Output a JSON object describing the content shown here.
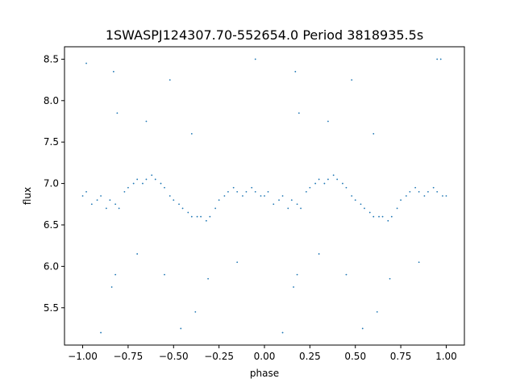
{
  "chart_data": {
    "type": "scatter",
    "title": "1SWASPJ124307.70-552654.0 Period 3818935.5s",
    "xlabel": "phase",
    "ylabel": "flux",
    "xlim": [
      -1.1,
      1.1
    ],
    "ylim": [
      5.05,
      8.65
    ],
    "xticks": [
      -1.0,
      -0.75,
      -0.5,
      -0.25,
      0.0,
      0.25,
      0.5,
      0.75,
      1.0
    ],
    "xtick_labels": [
      "−1.00",
      "−0.75",
      "−0.50",
      "−0.25",
      "0.00",
      "0.25",
      "0.50",
      "0.75",
      "1.00"
    ],
    "yticks": [
      5.5,
      6.0,
      6.5,
      7.0,
      7.5,
      8.0,
      8.5
    ],
    "ytick_labels": [
      "5.5",
      "6.0",
      "6.5",
      "7.0",
      "7.5",
      "8.0",
      "8.5"
    ],
    "grid": false,
    "marker_color": "#1f77b4",
    "series": [
      {
        "points": [
          [
            -1.0,
            6.85
          ],
          [
            -0.98,
            6.9
          ],
          [
            -0.95,
            6.75
          ],
          [
            -0.92,
            6.8
          ],
          [
            -0.9,
            6.85
          ],
          [
            -0.87,
            6.7
          ],
          [
            -0.85,
            6.8
          ],
          [
            -0.82,
            6.75
          ],
          [
            -0.8,
            6.7
          ],
          [
            -0.77,
            6.9
          ],
          [
            -0.75,
            6.95
          ],
          [
            -0.72,
            7.0
          ],
          [
            -0.7,
            7.05
          ],
          [
            -0.67,
            7.0
          ],
          [
            -0.65,
            7.05
          ],
          [
            -0.62,
            7.1
          ],
          [
            -0.6,
            7.05
          ],
          [
            -0.57,
            7.0
          ],
          [
            -0.55,
            6.95
          ],
          [
            -0.52,
            6.85
          ],
          [
            -0.5,
            6.8
          ],
          [
            -0.47,
            6.75
          ],
          [
            -0.45,
            6.7
          ],
          [
            -0.42,
            6.65
          ],
          [
            -0.4,
            6.6
          ],
          [
            -0.37,
            6.6
          ],
          [
            -0.35,
            6.6
          ],
          [
            -0.32,
            6.55
          ],
          [
            -0.3,
            6.6
          ],
          [
            -0.27,
            6.7
          ],
          [
            -0.25,
            6.8
          ],
          [
            -0.22,
            6.85
          ],
          [
            -0.2,
            6.9
          ],
          [
            -0.17,
            6.95
          ],
          [
            -0.15,
            6.9
          ],
          [
            -0.12,
            6.85
          ],
          [
            -0.1,
            6.9
          ],
          [
            -0.07,
            6.95
          ],
          [
            -0.05,
            6.9
          ],
          [
            -0.02,
            6.85
          ],
          [
            0.0,
            6.85
          ],
          [
            0.02,
            6.9
          ],
          [
            0.05,
            6.75
          ],
          [
            0.08,
            6.8
          ],
          [
            0.1,
            6.85
          ],
          [
            0.13,
            6.7
          ],
          [
            0.15,
            6.8
          ],
          [
            0.18,
            6.75
          ],
          [
            0.2,
            6.7
          ],
          [
            0.23,
            6.9
          ],
          [
            0.25,
            6.95
          ],
          [
            0.28,
            7.0
          ],
          [
            0.3,
            7.05
          ],
          [
            0.33,
            7.0
          ],
          [
            0.35,
            7.05
          ],
          [
            0.38,
            7.1
          ],
          [
            0.4,
            7.05
          ],
          [
            0.43,
            7.0
          ],
          [
            0.45,
            6.95
          ],
          [
            0.48,
            6.85
          ],
          [
            0.5,
            6.8
          ],
          [
            0.53,
            6.75
          ],
          [
            0.55,
            6.7
          ],
          [
            0.58,
            6.65
          ],
          [
            0.6,
            6.6
          ],
          [
            0.63,
            6.6
          ],
          [
            0.65,
            6.6
          ],
          [
            0.68,
            6.55
          ],
          [
            0.7,
            6.6
          ],
          [
            0.73,
            6.7
          ],
          [
            0.75,
            6.8
          ],
          [
            0.78,
            6.85
          ],
          [
            0.8,
            6.9
          ],
          [
            0.83,
            6.95
          ],
          [
            0.85,
            6.9
          ],
          [
            0.88,
            6.85
          ],
          [
            0.9,
            6.9
          ],
          [
            0.93,
            6.95
          ],
          [
            0.95,
            6.9
          ],
          [
            0.98,
            6.85
          ],
          [
            1.0,
            6.85
          ],
          [
            -0.83,
            8.35
          ],
          [
            -0.81,
            7.85
          ],
          [
            -0.84,
            5.75
          ],
          [
            -0.82,
            5.9
          ],
          [
            0.17,
            8.35
          ],
          [
            0.19,
            7.85
          ],
          [
            0.16,
            5.75
          ],
          [
            0.18,
            5.9
          ],
          [
            -0.31,
            5.85
          ],
          [
            0.69,
            5.85
          ],
          [
            -0.55,
            5.9
          ],
          [
            0.45,
            5.9
          ],
          [
            -0.9,
            5.2
          ],
          [
            0.1,
            5.2
          ],
          [
            -0.46,
            5.25
          ],
          [
            0.54,
            5.25
          ],
          [
            -0.98,
            8.45
          ],
          [
            0.97,
            8.5
          ],
          [
            -0.52,
            8.25
          ],
          [
            0.48,
            8.25
          ],
          [
            -0.38,
            5.45
          ],
          [
            0.62,
            5.45
          ],
          [
            -0.05,
            8.5
          ],
          [
            0.95,
            8.5
          ],
          [
            -0.4,
            7.6
          ],
          [
            0.6,
            7.6
          ],
          [
            -0.65,
            7.75
          ],
          [
            0.35,
            7.75
          ],
          [
            -0.15,
            6.05
          ],
          [
            0.85,
            6.05
          ],
          [
            -0.7,
            6.15
          ],
          [
            0.3,
            6.15
          ]
        ]
      }
    ]
  }
}
